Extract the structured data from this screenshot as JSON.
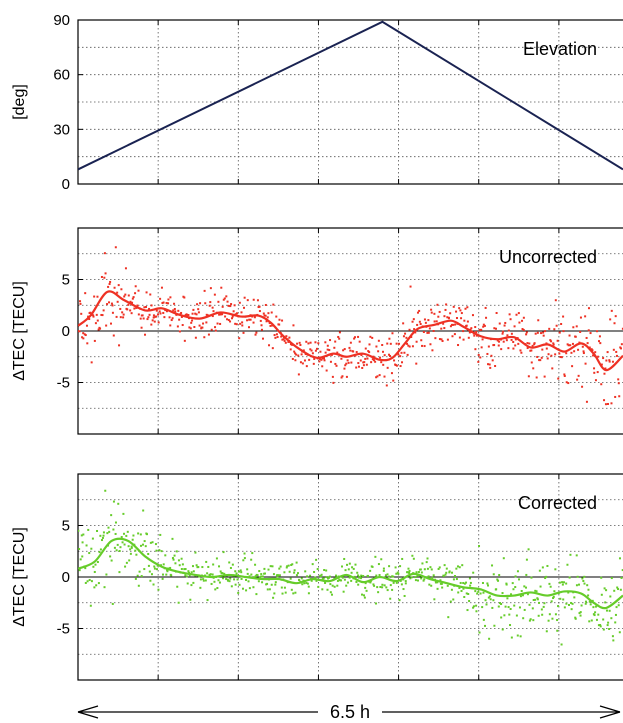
{
  "chart_data": [
    {
      "type": "line",
      "title": "Elevation",
      "xlabel": "",
      "ylabel": "[deg]",
      "ylim": [
        0,
        90
      ],
      "xlim": [
        0,
        6.5
      ],
      "yticks": [
        "0",
        "30",
        "60",
        "90"
      ],
      "grid": true,
      "series": [
        {
          "name": "",
          "color": "#1a2352",
          "x": [
            0,
            3.63,
            6.5
          ],
          "y": [
            8,
            89,
            8
          ]
        }
      ]
    },
    {
      "type": "scatter",
      "title": "Uncorrected",
      "xlabel": "",
      "ylabel": "ΔTEC [TECU]",
      "ylim": [
        -10,
        10
      ],
      "xlim": [
        0,
        6.5
      ],
      "yticks": [
        "-5",
        "0",
        "5"
      ],
      "grid": true,
      "zero_line": true,
      "color": "#ee3124",
      "trend_x": [
        0,
        0.15,
        0.35,
        0.55,
        0.8,
        1.0,
        1.2,
        1.45,
        1.7,
        1.95,
        2.15,
        2.3,
        2.45,
        2.65,
        2.85,
        3.05,
        3.2,
        3.4,
        3.6,
        3.75,
        3.9,
        4.05,
        4.25,
        4.45,
        4.6,
        4.8,
        5.0,
        5.2,
        5.4,
        5.6,
        5.8,
        6.0,
        6.15,
        6.3,
        6.5
      ],
      "trend_y": [
        0.5,
        1.5,
        3.8,
        3.0,
        2.0,
        2.2,
        1.6,
        1.2,
        1.8,
        1.4,
        1.5,
        0.8,
        -0.5,
        -1.8,
        -2.6,
        -2.2,
        -2.5,
        -2.2,
        -2.8,
        -2.6,
        -1.2,
        0.2,
        0.6,
        1.0,
        0.4,
        -0.5,
        -0.8,
        -0.6,
        -1.6,
        -1.3,
        -2.0,
        -1.2,
        -2.2,
        -3.8,
        -2.4
      ],
      "scatter_noise": [
        2.2,
        1.0,
        1.2,
        1.0,
        1.0,
        1.2,
        1.8,
        1.6,
        1.4,
        1.6,
        2.2
      ]
    },
    {
      "type": "scatter",
      "title": "Corrected",
      "xlabel": "6.5 h",
      "ylabel": "ΔTEC [TECU]",
      "ylim": [
        -10,
        10
      ],
      "xlim": [
        0,
        6.5
      ],
      "yticks": [
        "-5",
        "0",
        "5"
      ],
      "grid": true,
      "zero_line": true,
      "color": "#66cc2a",
      "trend_x": [
        0,
        0.2,
        0.4,
        0.6,
        0.8,
        1.0,
        1.2,
        1.4,
        1.6,
        1.8,
        2.0,
        2.2,
        2.4,
        2.6,
        2.8,
        3.0,
        3.2,
        3.4,
        3.6,
        3.8,
        4.0,
        4.2,
        4.4,
        4.6,
        4.8,
        5.0,
        5.2,
        5.4,
        5.6,
        5.8,
        6.0,
        6.15,
        6.3,
        6.5
      ],
      "trend_y": [
        0.8,
        1.5,
        3.5,
        3.5,
        2.0,
        1.0,
        0.5,
        0.2,
        0.0,
        0.2,
        0.0,
        -0.2,
        -0.2,
        -0.6,
        -0.2,
        -0.4,
        0.2,
        -0.5,
        0.0,
        -0.4,
        0.3,
        -0.2,
        -0.6,
        -1.0,
        -1.2,
        -1.8,
        -1.8,
        -1.5,
        -1.8,
        -1.4,
        -1.6,
        -2.5,
        -3.0,
        -1.8
      ],
      "scatter_noise": [
        2.4,
        1.6,
        1.2,
        1.0,
        1.0,
        1.0,
        1.0,
        1.2,
        1.8,
        2.0,
        2.4
      ]
    }
  ],
  "duration_label": "6.5 h"
}
